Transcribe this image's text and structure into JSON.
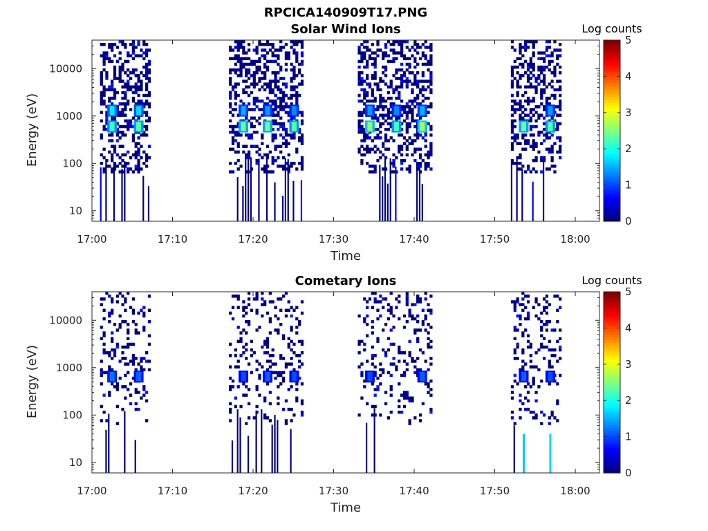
{
  "figure_title": "RPCICA140909T17.PNG",
  "chart_data": [
    {
      "type": "heatmap",
      "title": "Solar Wind Ions",
      "xlabel": "Time",
      "ylabel": "Energy (eV)",
      "x_ticks": [
        "17:00",
        "17:10",
        "17:20",
        "17:30",
        "17:40",
        "17:50",
        "18:00"
      ],
      "x_range_min": [
        0,
        63
      ],
      "y_ticks": [
        "10",
        "100",
        "1000",
        "10000"
      ],
      "y_scale": "log",
      "y_range": [
        6,
        40000
      ],
      "colorbar": {
        "label": "Log counts",
        "ticks": [
          "0",
          "1",
          "2",
          "3",
          "4",
          "5"
        ],
        "range": [
          0,
          5
        ],
        "colormap": "jet"
      },
      "bursts_min": [
        [
          1,
          7
        ],
        [
          17,
          26
        ],
        [
          33,
          42
        ],
        [
          52,
          58
        ]
      ],
      "hotspots": [
        {
          "t_min": 2.5,
          "energy_ev": 600,
          "log_counts": 2.2
        },
        {
          "t_min": 2.5,
          "energy_ev": 1300,
          "log_counts": 1.8
        },
        {
          "t_min": 5.8,
          "energy_ev": 600,
          "log_counts": 2.3
        },
        {
          "t_min": 5.8,
          "energy_ev": 1300,
          "log_counts": 1.7
        },
        {
          "t_min": 18.8,
          "energy_ev": 600,
          "log_counts": 2.4
        },
        {
          "t_min": 18.8,
          "energy_ev": 1300,
          "log_counts": 1.5
        },
        {
          "t_min": 21.8,
          "energy_ev": 600,
          "log_counts": 2.4
        },
        {
          "t_min": 21.8,
          "energy_ev": 1300,
          "log_counts": 1.4
        },
        {
          "t_min": 25.1,
          "energy_ev": 600,
          "log_counts": 2.3
        },
        {
          "t_min": 25.1,
          "energy_ev": 1300,
          "log_counts": 1.3
        },
        {
          "t_min": 34.5,
          "energy_ev": 600,
          "log_counts": 2.6
        },
        {
          "t_min": 34.5,
          "energy_ev": 1300,
          "log_counts": 1.4
        },
        {
          "t_min": 37.8,
          "energy_ev": 600,
          "log_counts": 2.2
        },
        {
          "t_min": 37.8,
          "energy_ev": 1300,
          "log_counts": 1.3
        },
        {
          "t_min": 41.0,
          "energy_ev": 600,
          "log_counts": 2.7
        },
        {
          "t_min": 41.0,
          "energy_ev": 1300,
          "log_counts": 1.5
        },
        {
          "t_min": 53.6,
          "energy_ev": 600,
          "log_counts": 2.4
        },
        {
          "t_min": 56.9,
          "energy_ev": 600,
          "log_counts": 2.3
        },
        {
          "t_min": 56.9,
          "energy_ev": 1300,
          "log_counts": 1.4
        }
      ]
    },
    {
      "type": "heatmap",
      "title": "Cometary Ions",
      "xlabel": "Time",
      "ylabel": "Energy (eV)",
      "x_ticks": [
        "17:00",
        "17:10",
        "17:20",
        "17:30",
        "17:40",
        "17:50",
        "18:00"
      ],
      "x_range_min": [
        0,
        63
      ],
      "y_ticks": [
        "10",
        "100",
        "1000",
        "10000"
      ],
      "y_scale": "log",
      "y_range": [
        6,
        40000
      ],
      "colorbar": {
        "label": "Log counts",
        "ticks": [
          "0",
          "1",
          "2",
          "3",
          "4",
          "5"
        ],
        "range": [
          0,
          5
        ],
        "colormap": "jet"
      },
      "bursts_min": [
        [
          1,
          7
        ],
        [
          17,
          26
        ],
        [
          33,
          42
        ],
        [
          52,
          58
        ]
      ],
      "hotspots": [
        {
          "t_min": 2.5,
          "energy_ev": 650,
          "log_counts": 1.2
        },
        {
          "t_min": 5.8,
          "energy_ev": 650,
          "log_counts": 1.1
        },
        {
          "t_min": 18.8,
          "energy_ev": 650,
          "log_counts": 1.0
        },
        {
          "t_min": 21.8,
          "energy_ev": 650,
          "log_counts": 1.1
        },
        {
          "t_min": 25.1,
          "energy_ev": 650,
          "log_counts": 1.0
        },
        {
          "t_min": 34.5,
          "energy_ev": 650,
          "log_counts": 1.0
        },
        {
          "t_min": 41.0,
          "energy_ev": 650,
          "log_counts": 1.1
        },
        {
          "t_min": 53.6,
          "energy_ev": 650,
          "log_counts": 1.1
        },
        {
          "t_min": 56.9,
          "energy_ev": 650,
          "log_counts": 1.0
        },
        {
          "t_min": 53.6,
          "energy_ev": 10,
          "log_counts": 1.6
        },
        {
          "t_min": 56.9,
          "energy_ev": 10,
          "log_counts": 1.7
        }
      ]
    }
  ]
}
